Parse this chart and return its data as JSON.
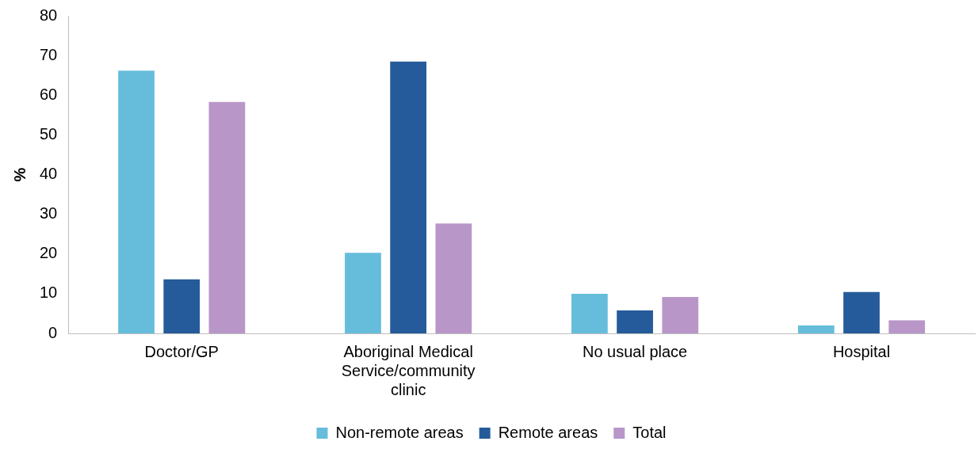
{
  "chart_data": {
    "type": "bar",
    "ylabel": "%",
    "categories": [
      "Doctor/GP",
      "Aboriginal Medical Service/community clinic",
      "No usual place",
      "Hospital"
    ],
    "series": [
      {
        "name": "Non-remote areas",
        "color": "#65bddb",
        "values": [
          66.2,
          20.3,
          10.0,
          2.0
        ]
      },
      {
        "name": "Remote areas",
        "color": "#255b9a",
        "values": [
          13.6,
          68.5,
          5.8,
          10.4
        ]
      },
      {
        "name": "Total",
        "color": "#b996c8",
        "values": [
          58.3,
          27.7,
          9.2,
          3.3
        ]
      }
    ],
    "ylim": [
      0,
      80
    ],
    "yticks": [
      0,
      10,
      20,
      30,
      40,
      50,
      60,
      70,
      80
    ],
    "grid": false,
    "legend": "bottom"
  }
}
